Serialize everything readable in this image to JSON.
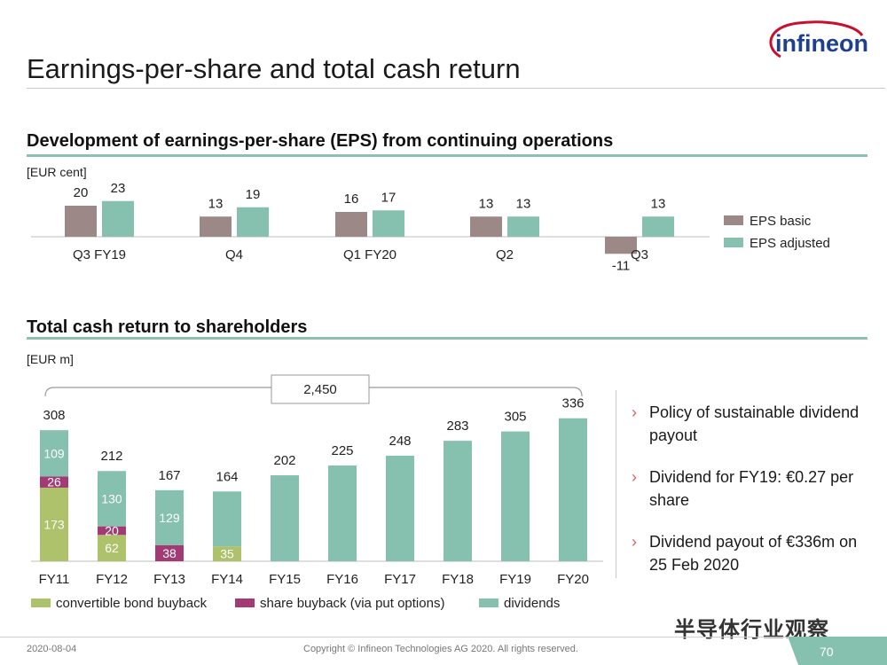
{
  "page": {
    "title": "Earnings-per-share and total cash return",
    "logo_text": "infineon",
    "footer_date": "2020-08-04",
    "footer_copy": "Copyright © Infineon Technologies AG 2020. All rights reserved.",
    "page_number": "70",
    "watermark": "半导体行业观察",
    "colors": {
      "eps_basic": "#9b8887",
      "eps_adjusted": "#86c0ae",
      "convertible": "#adc26a",
      "share_buyback": "#a23a73",
      "dividends": "#86c0ae",
      "accent": "#e06060"
    }
  },
  "eps_section": {
    "title": "Development of earnings-per-share (EPS) from continuing operations",
    "unit": "[EUR cent]"
  },
  "cash_section": {
    "title": "Total cash return to shareholders",
    "unit": "[EUR m]",
    "bracket_total": "2,450"
  },
  "bullets": [
    {
      "arrow": "›",
      "text": "Policy of sustainable dividend payout"
    },
    {
      "arrow": "›",
      "text": "Dividend for FY19: €0.27 per share"
    },
    {
      "arrow": "›",
      "text": "Dividend payout of €336m on 25 Feb 2020"
    }
  ],
  "chart_data": [
    {
      "type": "bar",
      "categories": [
        "Q3 FY19",
        "Q4",
        "Q1 FY20",
        "Q2",
        "Q3"
      ],
      "series": [
        {
          "name": "EPS basic",
          "values": [
            20,
            13,
            16,
            13,
            -11
          ]
        },
        {
          "name": "EPS adjusted",
          "values": [
            23,
            19,
            17,
            13,
            13
          ]
        }
      ],
      "ylabel": "[EUR cent]",
      "ylim": [
        -12,
        25
      ],
      "legend": "right",
      "grid": false
    },
    {
      "type": "bar",
      "stacked": true,
      "categories": [
        "FY11",
        "FY12",
        "FY13",
        "FY14",
        "FY15",
        "FY16",
        "FY17",
        "FY18",
        "FY19",
        "FY20"
      ],
      "series": [
        {
          "name": "convertible bond buyback",
          "values": [
            173,
            62,
            0,
            35,
            0,
            0,
            0,
            0,
            0,
            0
          ]
        },
        {
          "name": "share buyback (via put options)",
          "values": [
            26,
            20,
            38,
            0,
            0,
            0,
            0,
            0,
            0,
            0
          ]
        },
        {
          "name": "dividends",
          "values": [
            109,
            130,
            129,
            129,
            202,
            225,
            248,
            283,
            305,
            336
          ]
        }
      ],
      "totals": [
        308,
        212,
        167,
        164,
        202,
        225,
        248,
        283,
        305,
        336
      ],
      "segment_labels": {
        "convertible bond buyback": [
          "173",
          "62",
          "",
          "35",
          "",
          "",
          "",
          "",
          "",
          ""
        ],
        "share buyback (via put options)": [
          "26",
          "20",
          "38",
          "",
          "",
          "",
          "",
          "",
          "",
          ""
        ],
        "dividends": [
          "109",
          "130",
          "129",
          "",
          "",
          "",
          "",
          "",
          "",
          ""
        ]
      },
      "ylabel": "[EUR m]",
      "ylim": [
        0,
        350
      ],
      "legend": "bottom",
      "grid": false
    }
  ]
}
